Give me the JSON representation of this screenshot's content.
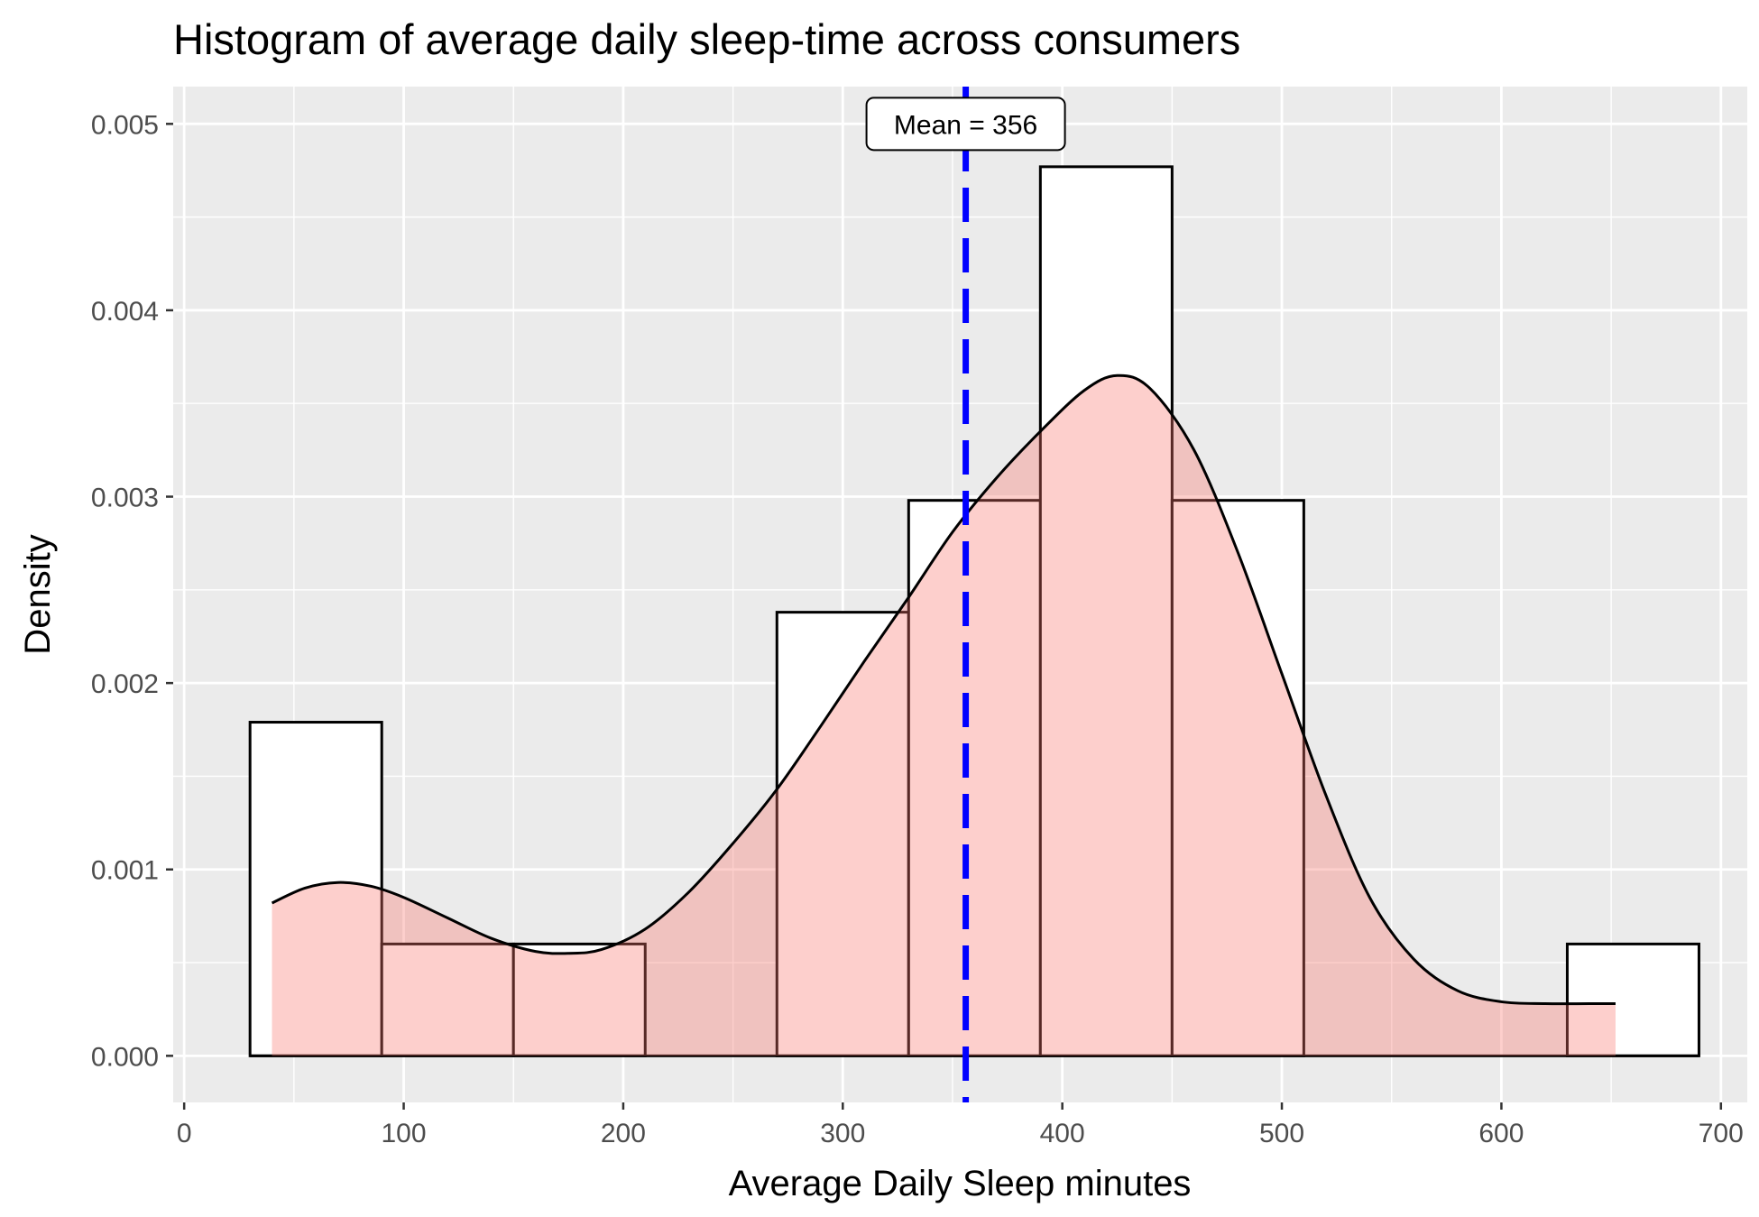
{
  "chart_data": {
    "type": "histogram",
    "title": "Histogram of average daily sleep-time across consumers",
    "xlabel": "Average Daily Sleep minutes",
    "ylabel": "Density",
    "xlim": [
      -5,
      712
    ],
    "ylim": [
      -0.00025,
      0.0052
    ],
    "x_ticks": [
      0,
      100,
      200,
      300,
      400,
      500,
      600,
      700
    ],
    "x_tick_labels": [
      "0",
      "100",
      "200",
      "300",
      "400",
      "500",
      "600",
      "700"
    ],
    "y_ticks": [
      0,
      0.001,
      0.002,
      0.003,
      0.004,
      0.005
    ],
    "y_tick_labels": [
      "0.000",
      "0.001",
      "0.002",
      "0.003",
      "0.004",
      "0.005"
    ],
    "grid": true,
    "bins": [
      {
        "x0": 30,
        "x1": 90,
        "density": 0.00179
      },
      {
        "x0": 90,
        "x1": 150,
        "density": 0.0006
      },
      {
        "x0": 150,
        "x1": 210,
        "density": 0.0006
      },
      {
        "x0": 210,
        "x1": 270,
        "density": 0
      },
      {
        "x0": 270,
        "x1": 330,
        "density": 0.00238
      },
      {
        "x0": 330,
        "x1": 390,
        "density": 0.00298
      },
      {
        "x0": 390,
        "x1": 450,
        "density": 0.00477
      },
      {
        "x0": 450,
        "x1": 510,
        "density": 0.00298
      },
      {
        "x0": 510,
        "x1": 570,
        "density": 0
      },
      {
        "x0": 570,
        "x1": 630,
        "density": 0
      },
      {
        "x0": 630,
        "x1": 690,
        "density": 0.0006
      }
    ],
    "density_curve": {
      "x": [
        40,
        55,
        70,
        85,
        100,
        120,
        140,
        160,
        175,
        190,
        210,
        230,
        250,
        270,
        290,
        310,
        330,
        350,
        370,
        390,
        410,
        425,
        440,
        460,
        480,
        500,
        520,
        540,
        560,
        580,
        600,
        620,
        640,
        652
      ],
      "y": [
        0.00082,
        0.0009,
        0.00093,
        0.00091,
        0.00085,
        0.00074,
        0.00063,
        0.00056,
        0.00055,
        0.00057,
        0.00068,
        0.00088,
        0.00114,
        0.00143,
        0.00177,
        0.00212,
        0.00246,
        0.00281,
        0.0031,
        0.00335,
        0.00357,
        0.00365,
        0.00358,
        0.00325,
        0.0027,
        0.00205,
        0.0014,
        0.00085,
        0.00052,
        0.00035,
        0.00029,
        0.00028,
        0.00028,
        0.00028
      ],
      "fill": "#f8766d",
      "fill_opacity": 0.35
    },
    "mean_line": {
      "x": 356,
      "color": "#0000ff",
      "style": "dashed"
    },
    "annotation": {
      "text": "Mean = 356",
      "x": 356,
      "y": 0.005
    },
    "colors": {
      "panel_background": "#ebebeb",
      "grid": "#ffffff",
      "bar_fill": "#ffffff",
      "bar_stroke": "#000000",
      "curve_stroke": "#000000"
    }
  }
}
